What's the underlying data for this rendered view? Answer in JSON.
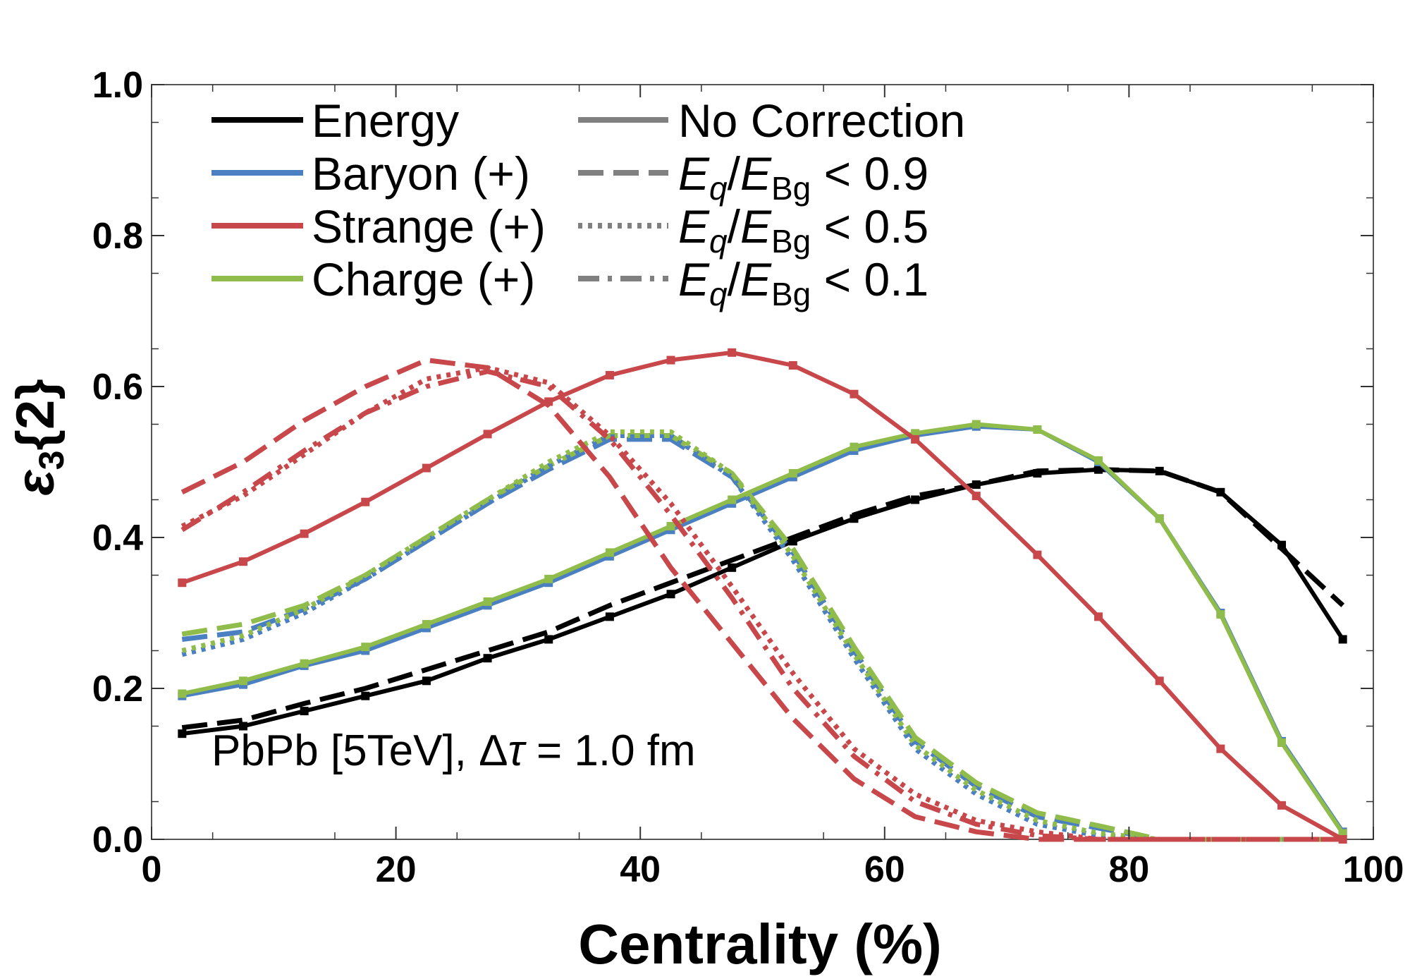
{
  "chart_data": {
    "type": "line",
    "xlabel": "Centrality (%)",
    "ylabel_symbol": "ε",
    "ylabel_sub": "3",
    "ylabel_rest": "{2}",
    "xlim": [
      0,
      100
    ],
    "ylim": [
      0.0,
      1.0
    ],
    "x_ticks": [
      0,
      20,
      40,
      60,
      80,
      100
    ],
    "x_tick_labels": [
      "0",
      "20",
      "40",
      "60",
      "80",
      "100"
    ],
    "y_ticks": [
      0.0,
      0.2,
      0.4,
      0.6,
      0.8,
      1.0
    ],
    "y_tick_labels": [
      "0.0",
      "0.2",
      "0.4",
      "0.6",
      "0.8",
      "1.0"
    ],
    "annotation": {
      "text_before": "PbPb [5TeV], Δ",
      "tau": "τ",
      "text_after": " = 1.0 fm"
    },
    "legend_quantity": [
      {
        "label": "Energy",
        "color": "#000000"
      },
      {
        "label": "Baryon (+)",
        "color": "#4a7fc1"
      },
      {
        "label": "Strange (+)",
        "color": "#c8474a"
      },
      {
        "label": "Charge (+)",
        "color": "#8fbc4a"
      }
    ],
    "legend_cut": [
      {
        "style": "solid",
        "prefix": "",
        "label": "No Correction"
      },
      {
        "style": "dashed",
        "prefix_E": "E",
        "prefix_q": "q",
        "slash": "/E",
        "bg": "Bg",
        "label": " < 0.9"
      },
      {
        "style": "dotted",
        "prefix_E": "E",
        "prefix_q": "q",
        "slash": "/E",
        "bg": "Bg",
        "label": " < 0.5"
      },
      {
        "style": "dashdot",
        "prefix_E": "E",
        "prefix_q": "q",
        "slash": "/E",
        "bg": "Bg",
        "label": " < 0.1"
      }
    ],
    "x": [
      2.5,
      7.5,
      12.5,
      17.5,
      22.5,
      27.5,
      32.5,
      37.5,
      42.5,
      47.5,
      52.5,
      57.5,
      62.5,
      67.5,
      72.5,
      77.5,
      82.5,
      87.5,
      92.5,
      97.5
    ],
    "series": [
      {
        "quantity": "Energy",
        "cut": "No Correction",
        "color": "#000000",
        "style": "solid",
        "values": [
          0.14,
          0.15,
          0.17,
          0.19,
          0.21,
          0.24,
          0.265,
          0.295,
          0.325,
          0.36,
          0.395,
          0.425,
          0.45,
          0.47,
          0.485,
          0.49,
          0.488,
          0.46,
          0.39,
          0.265
        ]
      },
      {
        "quantity": "Energy",
        "cut": "< 0.9",
        "color": "#000000",
        "style": "dashed",
        "values": [
          0.148,
          0.158,
          0.18,
          0.2,
          0.225,
          0.25,
          0.275,
          0.31,
          0.34,
          0.37,
          0.4,
          0.43,
          0.455,
          0.47,
          0.488,
          0.49,
          0.488,
          0.46,
          0.385,
          0.31
        ]
      },
      {
        "quantity": "Baryon (+)",
        "cut": "No Correction",
        "color": "#4a7fc1",
        "style": "solid",
        "values": [
          0.19,
          0.205,
          0.23,
          0.25,
          0.28,
          0.31,
          0.34,
          0.375,
          0.41,
          0.445,
          0.48,
          0.515,
          0.535,
          0.547,
          0.543,
          0.5,
          0.425,
          0.3,
          0.13,
          0.01
        ]
      },
      {
        "quantity": "Charge (+)",
        "cut": "No Correction",
        "color": "#8fbc4a",
        "style": "solid",
        "values": [
          0.193,
          0.21,
          0.233,
          0.255,
          0.285,
          0.315,
          0.345,
          0.38,
          0.415,
          0.45,
          0.485,
          0.52,
          0.538,
          0.55,
          0.543,
          0.502,
          0.425,
          0.298,
          0.128,
          0.008
        ]
      },
      {
        "quantity": "Strange (+)",
        "cut": "No Correction",
        "color": "#c8474a",
        "style": "solid",
        "values": [
          0.34,
          0.368,
          0.405,
          0.447,
          0.492,
          0.537,
          0.58,
          0.615,
          0.635,
          0.645,
          0.628,
          0.59,
          0.53,
          0.455,
          0.377,
          0.295,
          0.21,
          0.12,
          0.045,
          0.0
        ]
      },
      {
        "quantity": "Baryon (+)",
        "cut": "< 0.9",
        "color": "#4a7fc1",
        "style": "dashed",
        "values": [
          0.265,
          0.275,
          0.305,
          0.345,
          0.395,
          0.445,
          0.49,
          0.53,
          0.53,
          0.48,
          0.38,
          0.25,
          0.13,
          0.07,
          0.03,
          0.015,
          0.0,
          0.0,
          0.0,
          0.0
        ]
      },
      {
        "quantity": "Charge (+)",
        "cut": "< 0.9",
        "color": "#8fbc4a",
        "style": "dashed",
        "values": [
          0.272,
          0.285,
          0.31,
          0.35,
          0.4,
          0.45,
          0.495,
          0.535,
          0.535,
          0.485,
          0.385,
          0.255,
          0.135,
          0.075,
          0.035,
          0.018,
          0.0,
          0.0,
          0.0,
          0.0
        ]
      },
      {
        "quantity": "Baryon (+)",
        "cut": "< 0.5",
        "color": "#4a7fc1",
        "style": "dotted",
        "values": [
          0.245,
          0.265,
          0.3,
          0.345,
          0.395,
          0.445,
          0.495,
          0.535,
          0.535,
          0.48,
          0.37,
          0.24,
          0.12,
          0.06,
          0.02,
          0.005,
          0.0,
          0.0,
          0.0,
          0.0
        ]
      },
      {
        "quantity": "Charge (+)",
        "cut": "< 0.5",
        "color": "#8fbc4a",
        "style": "dotted",
        "values": [
          0.25,
          0.27,
          0.305,
          0.35,
          0.4,
          0.45,
          0.5,
          0.54,
          0.54,
          0.485,
          0.375,
          0.245,
          0.125,
          0.065,
          0.025,
          0.008,
          0.0,
          0.0,
          0.0,
          0.0
        ]
      },
      {
        "quantity": "Strange (+)",
        "cut": "< 0.9",
        "color": "#c8474a",
        "style": "dashed",
        "values": [
          0.46,
          0.5,
          0.555,
          0.6,
          0.635,
          0.625,
          0.575,
          0.48,
          0.36,
          0.26,
          0.16,
          0.08,
          0.03,
          0.01,
          0.0,
          0.0,
          0.0,
          0.0,
          0.0,
          0.0
        ]
      },
      {
        "quantity": "Strange (+)",
        "cut": "< 0.5",
        "color": "#c8474a",
        "style": "dotted",
        "values": [
          0.415,
          0.455,
          0.51,
          0.565,
          0.61,
          0.625,
          0.605,
          0.535,
          0.445,
          0.335,
          0.22,
          0.12,
          0.06,
          0.025,
          0.01,
          0.0,
          0.0,
          0.0,
          0.0,
          0.0
        ]
      },
      {
        "quantity": "Strange (+)",
        "cut": "< 0.1",
        "color": "#c8474a",
        "style": "dashdot",
        "values": [
          0.41,
          0.46,
          0.515,
          0.565,
          0.6,
          0.62,
          0.6,
          0.53,
          0.43,
          0.32,
          0.2,
          0.11,
          0.05,
          0.02,
          0.005,
          0.0,
          0.0,
          0.0,
          0.0,
          0.0
        ]
      }
    ]
  }
}
